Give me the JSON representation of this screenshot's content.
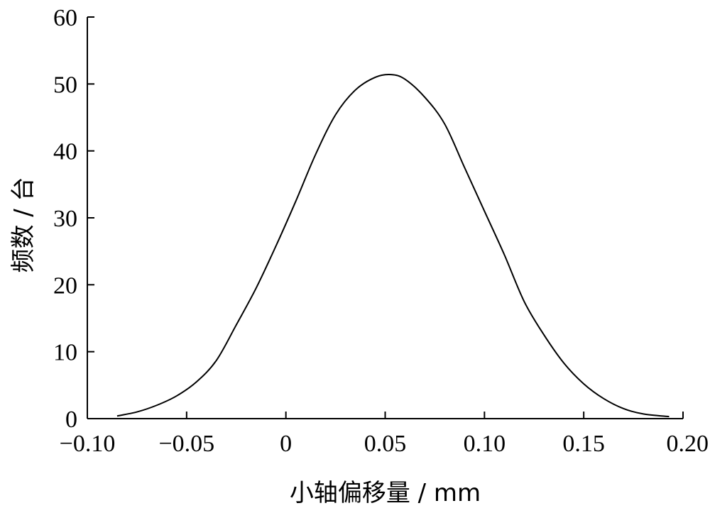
{
  "chart_data": {
    "type": "line",
    "title": "",
    "xlabel": "小轴偏移量 / mm",
    "ylabel": "频数 / 台",
    "xlim": [
      -0.1,
      0.2
    ],
    "ylim": [
      0,
      60
    ],
    "x_ticks": [
      -0.1,
      -0.05,
      0,
      0.05,
      0.1,
      0.15,
      0.2
    ],
    "x_tick_labels": [
      "−0.10",
      "−0.05",
      "0",
      "0.05",
      "0.10",
      "0.15",
      "0.20"
    ],
    "y_ticks": [
      0,
      10,
      20,
      30,
      40,
      50,
      60
    ],
    "y_tick_labels": [
      "0",
      "10",
      "20",
      "30",
      "40",
      "50",
      "60"
    ],
    "grid": false,
    "legend": "none",
    "line_color": "#000000",
    "series": [
      {
        "x": [
          -0.085,
          -0.075,
          -0.065,
          -0.055,
          -0.045,
          -0.035,
          -0.025,
          -0.015,
          -0.005,
          0.005,
          0.015,
          0.025,
          0.035,
          0.045,
          0.053,
          0.06,
          0.07,
          0.08,
          0.09,
          0.1,
          0.11,
          0.12,
          0.13,
          0.14,
          0.15,
          0.16,
          0.17,
          0.18,
          0.193
        ],
        "y": [
          0.4,
          1.0,
          2.0,
          3.4,
          5.5,
          8.7,
          14.0,
          19.5,
          25.8,
          32.5,
          39.5,
          45.4,
          49.1,
          51.0,
          51.4,
          50.7,
          48.0,
          44.0,
          37.5,
          31.0,
          24.5,
          17.5,
          12.5,
          8.3,
          5.2,
          3.0,
          1.5,
          0.7,
          0.3
        ]
      }
    ]
  }
}
